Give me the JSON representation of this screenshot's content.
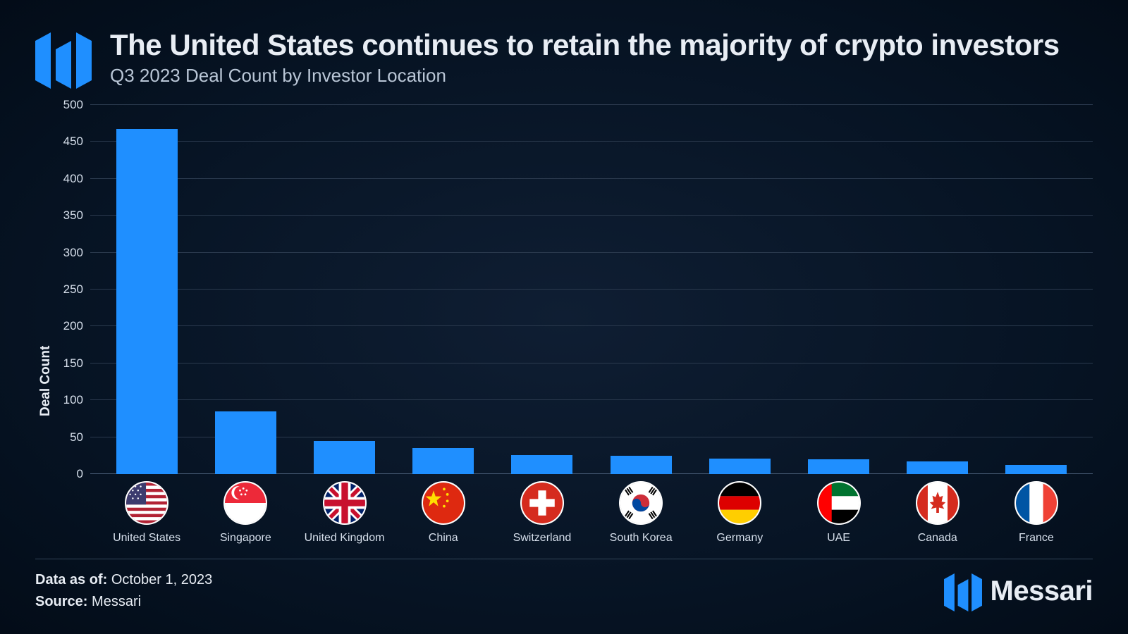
{
  "header": {
    "title": "The United States continues to retain the majority of crypto investors",
    "subtitle": "Q3 2023 Deal Count by Investor Location"
  },
  "chart": {
    "type": "bar",
    "ylabel": "Deal Count",
    "ylim": [
      0,
      500
    ],
    "ytick_step": 50,
    "yticks": [
      0,
      50,
      100,
      150,
      200,
      250,
      300,
      350,
      400,
      450,
      500
    ],
    "bar_color": "#1f8fff",
    "grid_color": "#2b3a4e",
    "baseline_color": "#4a5e78",
    "tick_fontsize": 17,
    "label_fontsize": 19,
    "category_fontsize": 16,
    "bar_width_ratio": 0.62,
    "background": "radial-gradient(#0f1e33, #061323, #030c18)",
    "categories": [
      {
        "name": "United States",
        "value": 468,
        "flag": "us"
      },
      {
        "name": "Singapore",
        "value": 85,
        "flag": "sg"
      },
      {
        "name": "United Kingdom",
        "value": 45,
        "flag": "gb"
      },
      {
        "name": "China",
        "value": 35,
        "flag": "cn"
      },
      {
        "name": "Switzerland",
        "value": 26,
        "flag": "ch"
      },
      {
        "name": "South Korea",
        "value": 25,
        "flag": "kr"
      },
      {
        "name": "Germany",
        "value": 21,
        "flag": "de"
      },
      {
        "name": "UAE",
        "value": 20,
        "flag": "ae"
      },
      {
        "name": "Canada",
        "value": 17,
        "flag": "ca"
      },
      {
        "name": "France",
        "value": 12,
        "flag": "fr"
      }
    ]
  },
  "footer": {
    "data_as_of_label": "Data as of:",
    "data_as_of_value": "October 1, 2023",
    "source_label": "Source:",
    "source_value": "Messari",
    "brand": "Messari"
  },
  "brand_logo_color": "#1f8fff"
}
